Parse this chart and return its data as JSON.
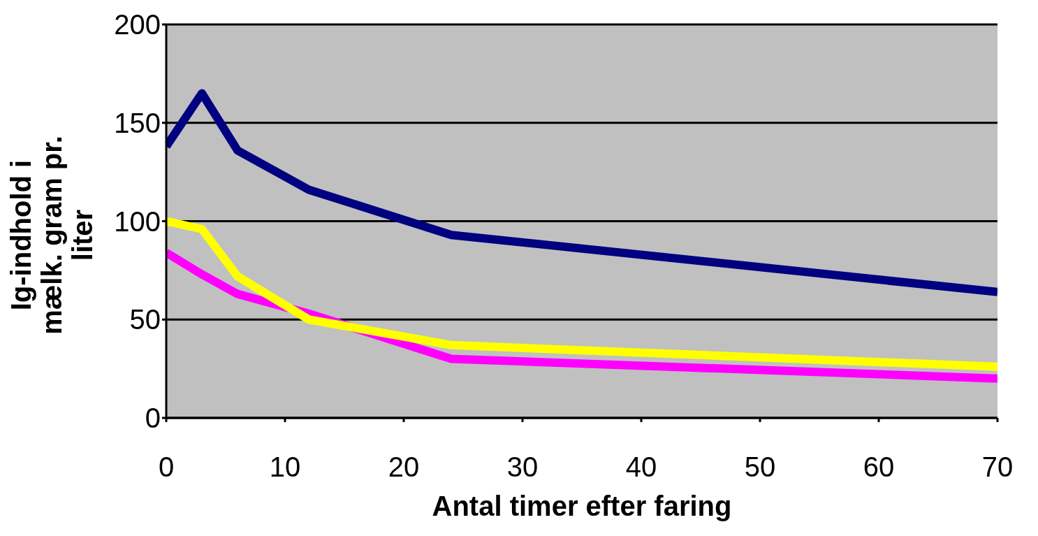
{
  "chart_data": {
    "type": "line",
    "xlabel": "Antal timer efter faring",
    "ylabel": "Ig-indhold i mælk. gram pr. liter",
    "x": [
      0,
      3,
      6,
      12,
      24,
      70
    ],
    "series": [
      {
        "color": "#000080",
        "values": [
          138,
          165,
          136,
          116,
          93,
          64
        ]
      },
      {
        "color": "#ff00ff",
        "values": [
          84,
          73,
          63,
          53,
          30,
          20
        ]
      },
      {
        "color": "#ffff00",
        "values": [
          100,
          96,
          72,
          50,
          37,
          26
        ]
      }
    ],
    "xlim": [
      0,
      70
    ],
    "xticks": [
      0,
      10,
      20,
      30,
      40,
      50,
      60,
      70
    ],
    "ylim": [
      0,
      200
    ],
    "yticks": [
      0,
      50,
      100,
      150,
      200
    ],
    "grid": "y",
    "marker": "none",
    "line_style": "solid"
  }
}
